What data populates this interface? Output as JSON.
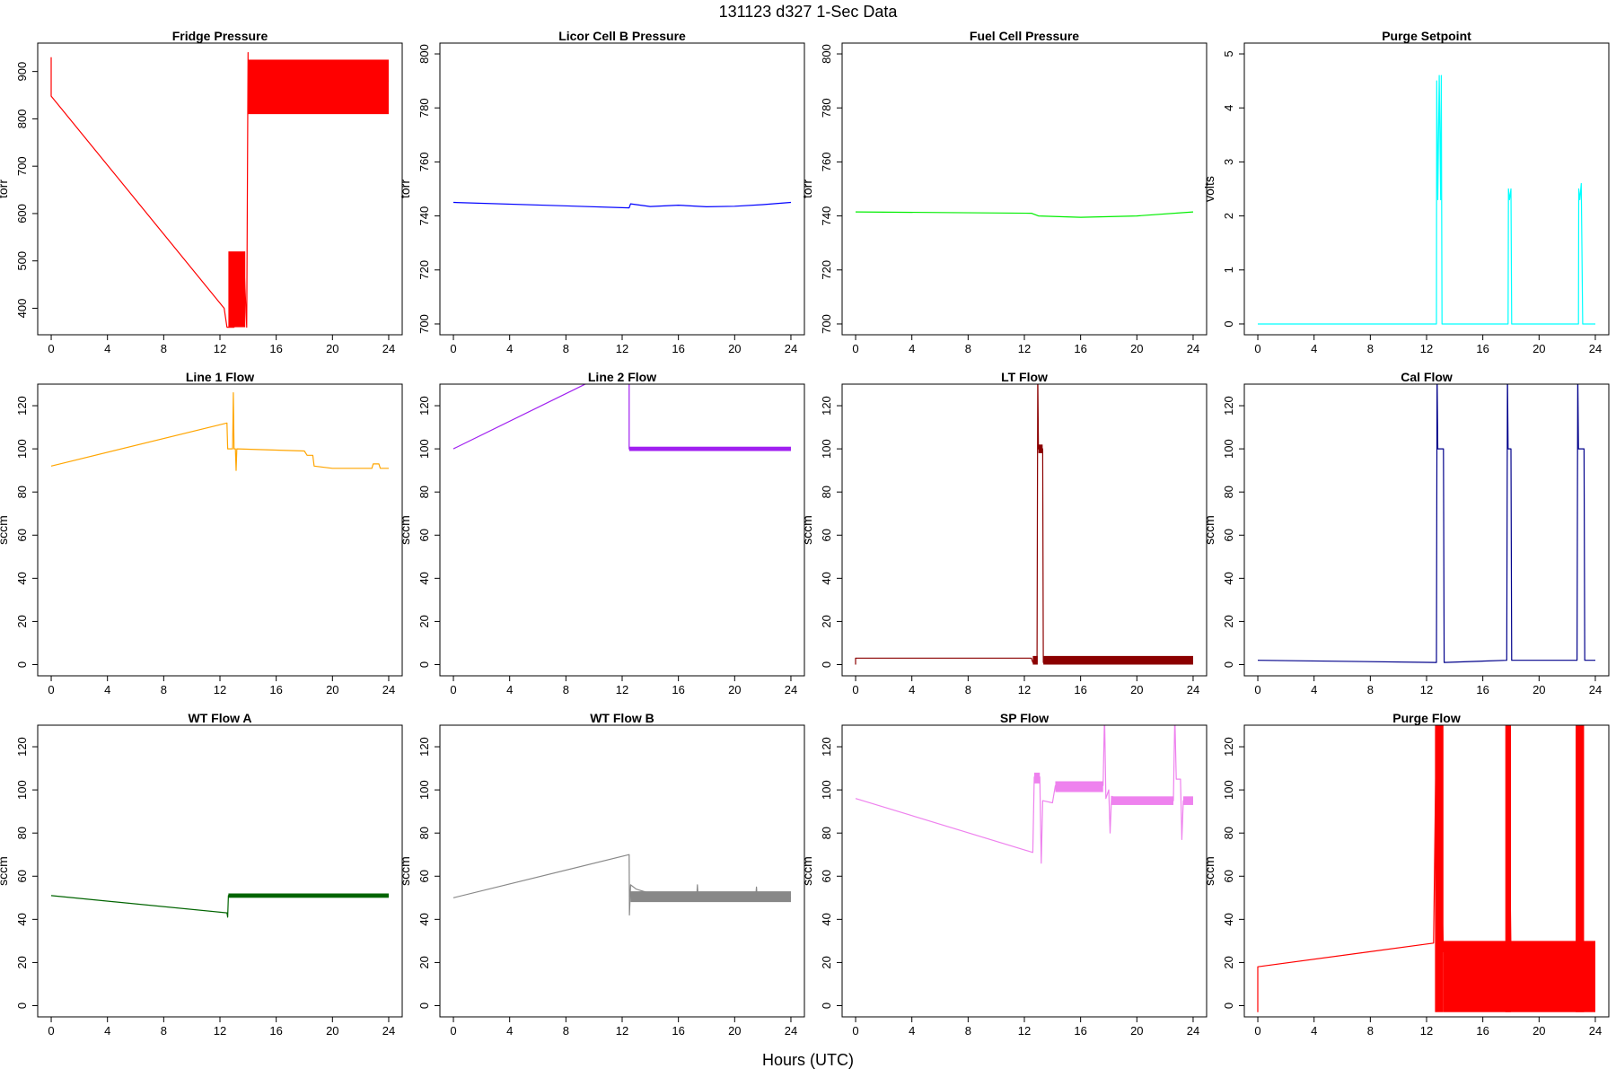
{
  "figure": {
    "title": "131123    d327    1-Sec Data",
    "xlabel": "Hours (UTC)"
  },
  "chart_data": [
    {
      "type": "line",
      "title": "Fridge Pressure",
      "ylabel": "torr",
      "color": "#ff0000",
      "xlim": [
        -0.96,
        24.96
      ],
      "ylim": [
        344,
        960
      ],
      "yticks": [
        400,
        500,
        600,
        700,
        800,
        900
      ],
      "xticks": [
        0,
        4,
        8,
        12,
        16,
        20,
        24
      ],
      "series": [
        {
          "points": [
            [
              0,
              930
            ],
            [
              0,
              848
            ],
            [
              12.3,
              400
            ],
            [
              12.5,
              360
            ],
            [
              13.0,
              360
            ],
            [
              13.3,
              470
            ],
            [
              13.7,
              500
            ],
            [
              13.9,
              360
            ],
            [
              14.0,
              940
            ],
            [
              14.0,
              880
            ],
            [
              24,
              880
            ]
          ]
        }
      ],
      "bands": [
        {
          "x0": 12.6,
          "x1": 13.8,
          "y0": 360,
          "y1": 520
        },
        {
          "x0": 14.0,
          "x1": 24.0,
          "y0": 810,
          "y1": 925
        }
      ]
    },
    {
      "type": "line",
      "title": "Licor Cell B Pressure",
      "ylabel": "torr",
      "color": "#0000ff",
      "xlim": [
        -0.96,
        24.96
      ],
      "ylim": [
        696,
        804
      ],
      "yticks": [
        700,
        720,
        740,
        760,
        780,
        800
      ],
      "xticks": [
        0,
        4,
        8,
        12,
        16,
        20,
        24
      ],
      "series": [
        {
          "points": [
            [
              0,
              745
            ],
            [
              12.5,
              743
            ],
            [
              12.6,
              744.5
            ],
            [
              14,
              743.5
            ],
            [
              16,
              744
            ],
            [
              18,
              743.4
            ],
            [
              20,
              743.6
            ],
            [
              22,
              744.2
            ],
            [
              24,
              745
            ]
          ]
        }
      ],
      "bands": []
    },
    {
      "type": "line",
      "title": "Fuel Cell Pressure",
      "ylabel": "torr",
      "color": "#00ee00",
      "xlim": [
        -0.96,
        24.96
      ],
      "ylim": [
        696,
        804
      ],
      "yticks": [
        700,
        720,
        740,
        760,
        780,
        800
      ],
      "xticks": [
        0,
        4,
        8,
        12,
        16,
        20,
        24
      ],
      "series": [
        {
          "points": [
            [
              0,
              741.5
            ],
            [
              12.5,
              741
            ],
            [
              13,
              740
            ],
            [
              16,
              739.5
            ],
            [
              20,
              740
            ],
            [
              24,
              741.5
            ]
          ]
        }
      ],
      "bands": []
    },
    {
      "type": "line",
      "title": "Purge Setpoint",
      "ylabel": "volts",
      "color": "#00ffff",
      "xlim": [
        -0.96,
        24.96
      ],
      "ylim": [
        -0.2,
        5.2
      ],
      "yticks": [
        0,
        1,
        2,
        3,
        4,
        5
      ],
      "xticks": [
        0,
        4,
        8,
        12,
        16,
        20,
        24
      ],
      "series": [
        {
          "points": [
            [
              0,
              0
            ],
            [
              12.7,
              0
            ],
            [
              12.72,
              4.5
            ],
            [
              12.8,
              2.3
            ],
            [
              12.9,
              4.6
            ],
            [
              13.0,
              2.3
            ],
            [
              13.05,
              4.6
            ],
            [
              13.1,
              0
            ],
            [
              17.8,
              0
            ],
            [
              17.82,
              2.5
            ],
            [
              17.9,
              2.3
            ],
            [
              18.0,
              2.5
            ],
            [
              18.05,
              0
            ],
            [
              22.8,
              0
            ],
            [
              22.82,
              2.5
            ],
            [
              22.9,
              2.3
            ],
            [
              23.0,
              2.6
            ],
            [
              23.1,
              0
            ],
            [
              24,
              0
            ]
          ]
        }
      ],
      "bands": []
    },
    {
      "type": "line",
      "title": "Line 1 Flow",
      "ylabel": "sccm",
      "color": "#ffa500",
      "xlim": [
        -0.96,
        24.96
      ],
      "ylim": [
        -5.2,
        130
      ],
      "yticks": [
        0,
        20,
        40,
        60,
        80,
        100,
        120
      ],
      "xticks": [
        0,
        4,
        8,
        12,
        16,
        20,
        24
      ],
      "series": [
        {
          "points": [
            [
              0,
              92
            ],
            [
              12.5,
              112
            ],
            [
              12.55,
              100
            ],
            [
              12.9,
              100
            ],
            [
              12.95,
              126
            ],
            [
              13.0,
              100
            ],
            [
              13.1,
              100
            ],
            [
              13.15,
              90
            ],
            [
              13.2,
              100
            ],
            [
              18,
              99
            ],
            [
              18.2,
              97
            ],
            [
              18.6,
              97
            ],
            [
              18.7,
              92
            ],
            [
              20,
              91
            ],
            [
              22.8,
              91
            ],
            [
              22.9,
              93
            ],
            [
              23.3,
              93
            ],
            [
              23.4,
              91
            ],
            [
              24,
              91
            ]
          ]
        }
      ],
      "bands": []
    },
    {
      "type": "line",
      "title": "Line 2 Flow",
      "ylabel": "sccm",
      "color": "#a020f0",
      "xlim": [
        -0.96,
        24.96
      ],
      "ylim": [
        -5.2,
        130
      ],
      "yticks": [
        0,
        20,
        40,
        60,
        80,
        100,
        120
      ],
      "xticks": [
        0,
        4,
        8,
        12,
        16,
        20,
        24
      ],
      "series": [
        {
          "points": [
            [
              0,
              100
            ],
            [
              12.5,
              140
            ],
            [
              12.5,
              100
            ],
            [
              24,
              100
            ]
          ]
        }
      ],
      "bands": [
        {
          "x0": 12.5,
          "x1": 24.0,
          "y0": 99,
          "y1": 101
        }
      ]
    },
    {
      "type": "line",
      "title": "LT Flow",
      "ylabel": "sccm",
      "color": "#8b0000",
      "xlim": [
        -0.96,
        24.96
      ],
      "ylim": [
        -5.2,
        130
      ],
      "yticks": [
        0,
        20,
        40,
        60,
        80,
        100,
        120
      ],
      "xticks": [
        0,
        4,
        8,
        12,
        16,
        20,
        24
      ],
      "series": [
        {
          "points": [
            [
              0,
              0
            ],
            [
              0,
              3
            ],
            [
              12.5,
              3
            ],
            [
              12.6,
              1
            ],
            [
              12.9,
              1
            ],
            [
              12.95,
              135
            ],
            [
              13.0,
              100
            ],
            [
              13.3,
              100
            ],
            [
              13.35,
              1
            ],
            [
              24,
              2
            ]
          ]
        }
      ],
      "bands": [
        {
          "x0": 12.6,
          "x1": 12.95,
          "y0": 0,
          "y1": 4
        },
        {
          "x0": 13.0,
          "x1": 13.3,
          "y0": 98,
          "y1": 102
        },
        {
          "x0": 13.35,
          "x1": 24.0,
          "y0": 0,
          "y1": 4
        }
      ]
    },
    {
      "type": "line",
      "title": "Cal Flow",
      "ylabel": "sccm",
      "color": "#00008b",
      "xlim": [
        -0.96,
        24.96
      ],
      "ylim": [
        -5.2,
        130
      ],
      "yticks": [
        0,
        20,
        40,
        60,
        80,
        100,
        120
      ],
      "xticks": [
        0,
        4,
        8,
        12,
        16,
        20,
        24
      ],
      "series": [
        {
          "points": [
            [
              0,
              2
            ],
            [
              12.6,
              1
            ],
            [
              12.7,
              1
            ],
            [
              12.75,
              135
            ],
            [
              12.8,
              100
            ],
            [
              13.2,
              100
            ],
            [
              13.25,
              1
            ],
            [
              17.7,
              2
            ],
            [
              17.75,
              135
            ],
            [
              17.8,
              100
            ],
            [
              18,
              100
            ],
            [
              18.05,
              2
            ],
            [
              22.7,
              2
            ],
            [
              22.75,
              135
            ],
            [
              22.8,
              100
            ],
            [
              23.2,
              100
            ],
            [
              23.25,
              2
            ],
            [
              24,
              2
            ]
          ]
        }
      ],
      "bands": []
    },
    {
      "type": "line",
      "title": "WT Flow A",
      "ylabel": "sccm",
      "color": "#006400",
      "xlim": [
        -0.96,
        24.96
      ],
      "ylim": [
        -5.2,
        130
      ],
      "yticks": [
        0,
        20,
        40,
        60,
        80,
        100,
        120
      ],
      "xticks": [
        0,
        4,
        8,
        12,
        16,
        20,
        24
      ],
      "series": [
        {
          "points": [
            [
              0,
              51
            ],
            [
              12.5,
              43
            ],
            [
              12.55,
              41
            ],
            [
              12.6,
              51
            ],
            [
              24,
              51
            ]
          ]
        }
      ],
      "bands": [
        {
          "x0": 12.6,
          "x1": 24.0,
          "y0": 50,
          "y1": 52
        }
      ]
    },
    {
      "type": "line",
      "title": "WT Flow B",
      "ylabel": "sccm",
      "color": "#888888",
      "xlim": [
        -0.96,
        24.96
      ],
      "ylim": [
        -5.2,
        130
      ],
      "yticks": [
        0,
        20,
        40,
        60,
        80,
        100,
        120
      ],
      "xticks": [
        0,
        4,
        8,
        12,
        16,
        20,
        24
      ],
      "series": [
        {
          "points": [
            [
              0,
              50
            ],
            [
              12.5,
              70
            ],
            [
              12.52,
              42
            ],
            [
              12.6,
              56
            ],
            [
              13,
              54
            ],
            [
              14,
              52
            ],
            [
              16,
              51
            ],
            [
              17.3,
              50
            ],
            [
              17.35,
              56
            ],
            [
              17.4,
              50
            ],
            [
              20,
              50
            ],
            [
              21.5,
              51
            ],
            [
              21.55,
              55
            ],
            [
              21.6,
              50
            ],
            [
              24,
              50
            ]
          ]
        }
      ],
      "bands": [
        {
          "x0": 12.6,
          "x1": 24.0,
          "y0": 48,
          "y1": 53
        }
      ]
    },
    {
      "type": "line",
      "title": "SP Flow",
      "ylabel": "sccm",
      "color": "#ee82ee",
      "xlim": [
        -0.96,
        24.96
      ],
      "ylim": [
        -5.2,
        130
      ],
      "yticks": [
        0,
        20,
        40,
        60,
        80,
        100,
        120
      ],
      "xticks": [
        0,
        4,
        8,
        12,
        16,
        20,
        24
      ],
      "series": [
        {
          "points": [
            [
              0,
              96
            ],
            [
              12.6,
              71
            ],
            [
              12.7,
              106
            ],
            [
              13.1,
              106
            ],
            [
              13.2,
              66
            ],
            [
              13.3,
              95
            ],
            [
              14,
              94
            ],
            [
              14.2,
              102
            ],
            [
              17.6,
              102
            ],
            [
              17.7,
              135
            ],
            [
              17.8,
              96
            ],
            [
              18,
              100
            ],
            [
              18.1,
              80
            ],
            [
              18.2,
              97
            ],
            [
              19,
              95
            ],
            [
              22.6,
              95
            ],
            [
              22.7,
              135
            ],
            [
              22.8,
              105
            ],
            [
              23.1,
              105
            ],
            [
              23.2,
              77
            ],
            [
              23.3,
              95
            ],
            [
              24,
              95
            ]
          ]
        }
      ],
      "bands": [
        {
          "x0": 12.7,
          "x1": 13.1,
          "y0": 103,
          "y1": 108
        },
        {
          "x0": 14.2,
          "x1": 17.6,
          "y0": 99,
          "y1": 104
        },
        {
          "x0": 18.2,
          "x1": 22.6,
          "y0": 93,
          "y1": 97
        },
        {
          "x0": 23.3,
          "x1": 24.0,
          "y0": 93,
          "y1": 97
        }
      ]
    },
    {
      "type": "line",
      "title": "Purge Flow",
      "ylabel": "sccm",
      "color": "#ff0000",
      "xlim": [
        -0.96,
        24.96
      ],
      "ylim": [
        -5.2,
        130
      ],
      "yticks": [
        0,
        20,
        40,
        60,
        80,
        100,
        120
      ],
      "xticks": [
        0,
        4,
        8,
        12,
        16,
        20,
        24
      ],
      "series": [
        {
          "points": [
            [
              0,
              -3
            ],
            [
              0,
              18
            ],
            [
              12.5,
              29
            ],
            [
              12.7,
              135
            ],
            [
              13.2,
              25
            ],
            [
              17.7,
              25
            ],
            [
              17.8,
              135
            ],
            [
              18.0,
              25
            ],
            [
              22.7,
              25
            ],
            [
              22.8,
              135
            ],
            [
              23.1,
              25
            ],
            [
              24,
              25
            ]
          ]
        }
      ],
      "bands": [
        {
          "x0": 12.6,
          "x1": 13.2,
          "y0": -3,
          "y1": 130
        },
        {
          "x0": 13.2,
          "x1": 24.0,
          "y0": -3,
          "y1": 30
        },
        {
          "x0": 17.6,
          "x1": 18.0,
          "y0": -3,
          "y1": 130
        },
        {
          "x0": 22.6,
          "x1": 23.2,
          "y0": -3,
          "y1": 130
        }
      ]
    }
  ]
}
